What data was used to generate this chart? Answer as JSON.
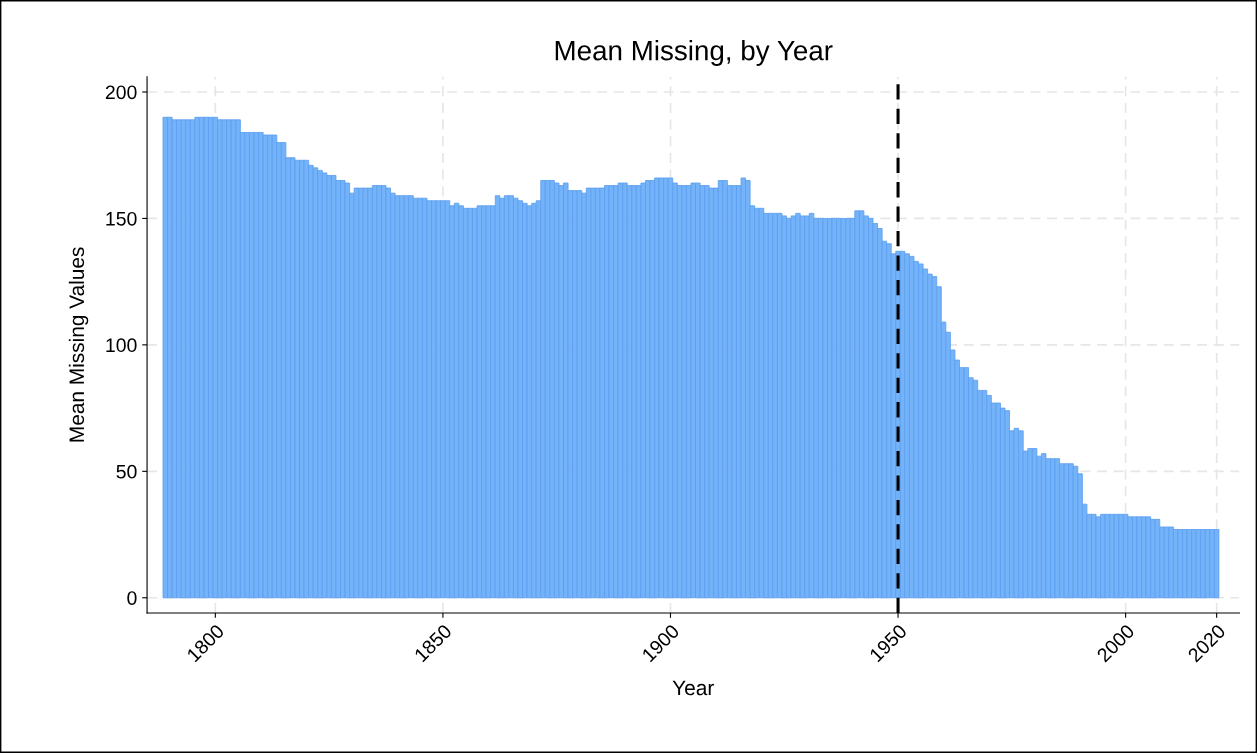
{
  "chart_data": {
    "type": "bar",
    "title": "Mean Missing, by Year",
    "xlabel": "Year",
    "ylabel": "Mean Missing Values",
    "x": [
      1789,
      1790,
      1791,
      1792,
      1793,
      1794,
      1795,
      1796,
      1797,
      1798,
      1799,
      1800,
      1801,
      1802,
      1803,
      1804,
      1805,
      1806,
      1807,
      1808,
      1809,
      1810,
      1811,
      1812,
      1813,
      1814,
      1815,
      1816,
      1817,
      1818,
      1819,
      1820,
      1821,
      1822,
      1823,
      1824,
      1825,
      1826,
      1827,
      1828,
      1829,
      1830,
      1831,
      1832,
      1833,
      1834,
      1835,
      1836,
      1837,
      1838,
      1839,
      1840,
      1841,
      1842,
      1843,
      1844,
      1845,
      1846,
      1847,
      1848,
      1849,
      1850,
      1851,
      1852,
      1853,
      1854,
      1855,
      1856,
      1857,
      1858,
      1859,
      1860,
      1861,
      1862,
      1863,
      1864,
      1865,
      1866,
      1867,
      1868,
      1869,
      1870,
      1871,
      1872,
      1873,
      1874,
      1875,
      1876,
      1877,
      1878,
      1879,
      1880,
      1881,
      1882,
      1883,
      1884,
      1885,
      1886,
      1887,
      1888,
      1889,
      1890,
      1891,
      1892,
      1893,
      1894,
      1895,
      1896,
      1897,
      1898,
      1899,
      1900,
      1901,
      1902,
      1903,
      1904,
      1905,
      1906,
      1907,
      1908,
      1909,
      1910,
      1911,
      1912,
      1913,
      1914,
      1915,
      1916,
      1917,
      1918,
      1919,
      1920,
      1921,
      1922,
      1923,
      1924,
      1925,
      1926,
      1927,
      1928,
      1929,
      1930,
      1931,
      1932,
      1933,
      1934,
      1935,
      1936,
      1937,
      1938,
      1939,
      1940,
      1941,
      1942,
      1943,
      1944,
      1945,
      1946,
      1947,
      1948,
      1949,
      1950,
      1951,
      1952,
      1953,
      1954,
      1955,
      1956,
      1957,
      1958,
      1959,
      1960,
      1961,
      1962,
      1963,
      1964,
      1965,
      1966,
      1967,
      1968,
      1969,
      1970,
      1971,
      1972,
      1973,
      1974,
      1975,
      1976,
      1977,
      1978,
      1979,
      1980,
      1981,
      1982,
      1983,
      1984,
      1985,
      1986,
      1987,
      1988,
      1989,
      1990,
      1991,
      1992,
      1993,
      1994,
      1995,
      1996,
      1997,
      1998,
      1999,
      2000,
      2001,
      2002,
      2003,
      2004,
      2005,
      2006,
      2007,
      2008,
      2009,
      2010,
      2011,
      2012,
      2013,
      2014,
      2015,
      2016,
      2017,
      2018,
      2019,
      2020
    ],
    "values": [
      190,
      190,
      189,
      189,
      189,
      189,
      189,
      190,
      190,
      190,
      190,
      190,
      189,
      189,
      189,
      189,
      189,
      184,
      184,
      184,
      184,
      184,
      183,
      183,
      183,
      180,
      180,
      174,
      174,
      173,
      173,
      173,
      171,
      170,
      169,
      168,
      167,
      167,
      165,
      165,
      164,
      160,
      162,
      162,
      162,
      162,
      163,
      163,
      163,
      162,
      160,
      159,
      159,
      159,
      159,
      158,
      158,
      158,
      157,
      157,
      157,
      157,
      157,
      155,
      156,
      155,
      154,
      154,
      154,
      155,
      155,
      155,
      155,
      159,
      158,
      159,
      159,
      158,
      157,
      156,
      155,
      156,
      157,
      165,
      165,
      165,
      164,
      163,
      164,
      161,
      161,
      161,
      160,
      162,
      162,
      162,
      162,
      163,
      163,
      163,
      164,
      164,
      163,
      163,
      163,
      164,
      165,
      165,
      166,
      166,
      166,
      166,
      164,
      163,
      163,
      163,
      164,
      164,
      163,
      163,
      162,
      162,
      165,
      165,
      163,
      163,
      163,
      166,
      165,
      155,
      154,
      154,
      152,
      152,
      152,
      152,
      151,
      150,
      151,
      152,
      151,
      151,
      152,
      150,
      150,
      150,
      150,
      150,
      150,
      150,
      150,
      150,
      153,
      153,
      151,
      150,
      148,
      146,
      141,
      140,
      136,
      137,
      137,
      136,
      135,
      133,
      132,
      130,
      128,
      127,
      123,
      109,
      105,
      98,
      94,
      91,
      91,
      87,
      86,
      82,
      82,
      80,
      77,
      77,
      75,
      74,
      66,
      67,
      66,
      58,
      59,
      59,
      56,
      57,
      55,
      55,
      55,
      53,
      53,
      53,
      52,
      49,
      37,
      33,
      33,
      32,
      33,
      33,
      33,
      33,
      33,
      33,
      32,
      32,
      32,
      32,
      32,
      31,
      31,
      28,
      28,
      28,
      27,
      27,
      27,
      27,
      27,
      27,
      27,
      27,
      27,
      27
    ],
    "color": "#74b3f9",
    "xlim": [
      1785,
      2025
    ],
    "xticks": [
      1800,
      1850,
      1900,
      1950,
      2000,
      2020
    ],
    "ylim": [
      -6,
      206
    ],
    "yticks": [
      0,
      50,
      100,
      150,
      200
    ],
    "grid": true,
    "ref_lines": [
      {
        "axis": "x",
        "value": 1950,
        "color": "#000000",
        "line_style": "dashed"
      }
    ]
  }
}
